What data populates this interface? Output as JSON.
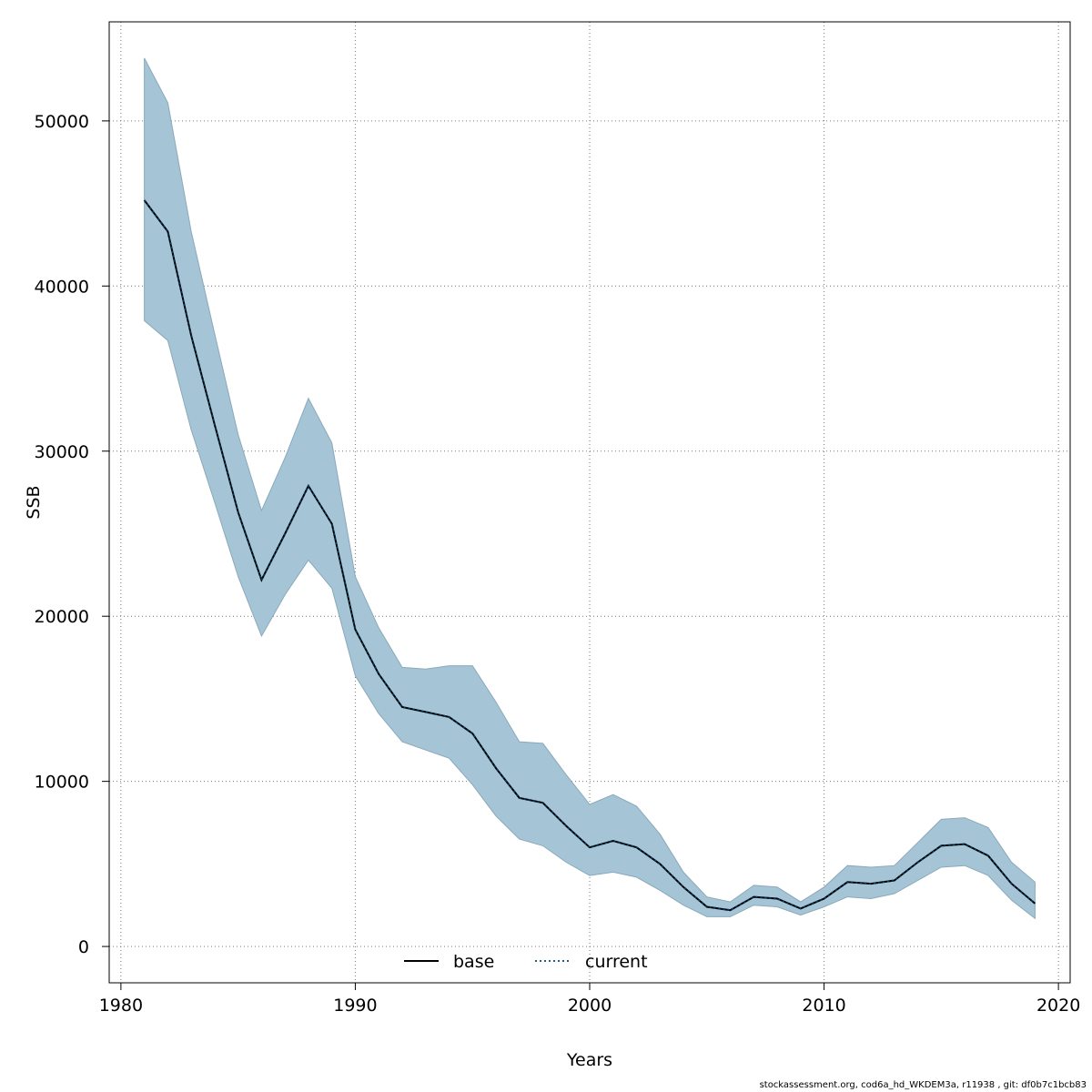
{
  "chart_data": {
    "type": "line",
    "xlabel": "Years",
    "ylabel": "SSB",
    "xlim": [
      1979.5,
      2020.5
    ],
    "ylim": [
      -2200,
      56000
    ],
    "x_ticks": [
      1980,
      1990,
      2000,
      2010,
      2020
    ],
    "y_ticks": [
      0,
      10000,
      20000,
      30000,
      40000,
      50000
    ],
    "grid": true,
    "legend_position": "bottom",
    "legend": [
      {
        "label": "base",
        "style": "solid",
        "color": "#000000"
      },
      {
        "label": "current",
        "style": "dotted",
        "color": "#1f5f8b"
      }
    ],
    "band_color": "#a5c4d5",
    "x": [
      1981,
      1982,
      1983,
      1984,
      1985,
      1986,
      1987,
      1988,
      1989,
      1990,
      1991,
      1992,
      1993,
      1994,
      1995,
      1996,
      1997,
      1998,
      1999,
      2000,
      2001,
      2002,
      2003,
      2004,
      2005,
      2006,
      2007,
      2008,
      2009,
      2010,
      2011,
      2012,
      2013,
      2014,
      2015,
      2016,
      2017,
      2018,
      2019
    ],
    "series": [
      {
        "name": "base",
        "values": [
          45200,
          43300,
          37000,
          31600,
          26300,
          22200,
          25000,
          27900,
          25600,
          19200,
          16500,
          14500,
          14200,
          13900,
          12900,
          10800,
          9000,
          8700,
          7300,
          6000,
          6400,
          6000,
          5000,
          3600,
          2400,
          2200,
          3000,
          2900,
          2300,
          2900,
          3900,
          3800,
          4000,
          5100,
          6100,
          6200,
          5500,
          3800,
          2600
        ]
      },
      {
        "name": "current",
        "values": [
          45200,
          43300,
          37000,
          31600,
          26300,
          22200,
          25000,
          27900,
          25600,
          19200,
          16500,
          14500,
          14200,
          13900,
          12900,
          10800,
          9000,
          8700,
          7300,
          6000,
          6400,
          6000,
          5000,
          3600,
          2400,
          2200,
          3000,
          2900,
          2300,
          2900,
          3900,
          3800,
          4000,
          5100,
          6100,
          6200,
          5500,
          3800,
          2600
        ]
      }
    ],
    "confidence_band": {
      "upper": [
        53800,
        51100,
        43300,
        37100,
        31000,
        26400,
        29600,
        33200,
        30500,
        22400,
        19300,
        16900,
        16800,
        17000,
        17000,
        14800,
        12400,
        12300,
        10400,
        8600,
        9200,
        8500,
        6800,
        4500,
        3000,
        2700,
        3700,
        3600,
        2700,
        3600,
        4900,
        4800,
        4900,
        6300,
        7700,
        7800,
        7200,
        5100,
        3900
      ],
      "lower": [
        37900,
        36700,
        31300,
        26900,
        22400,
        18800,
        21300,
        23400,
        21700,
        16400,
        14100,
        12400,
        11900,
        11400,
        9800,
        7900,
        6500,
        6100,
        5100,
        4300,
        4500,
        4200,
        3400,
        2500,
        1800,
        1800,
        2500,
        2400,
        1900,
        2400,
        3000,
        2900,
        3200,
        4000,
        4800,
        4900,
        4300,
        2800,
        1700
      ]
    }
  },
  "footer": "stockassessment.org, cod6a_hd_WKDEM3a, r11938 , git: df0b7c1bcb83"
}
